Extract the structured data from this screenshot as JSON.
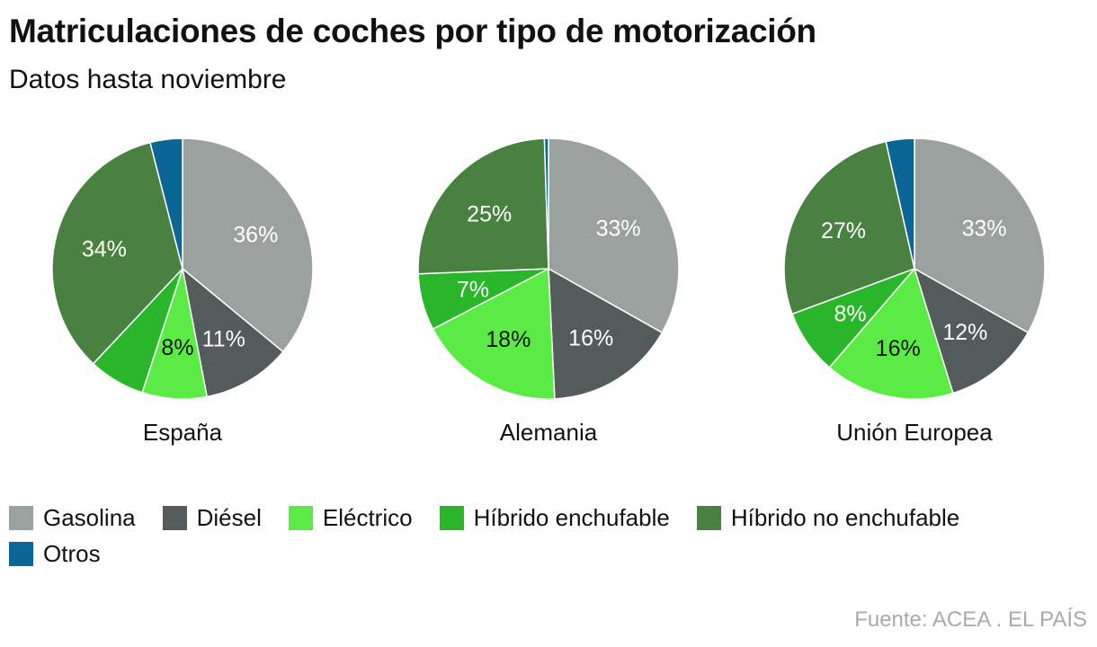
{
  "header": {
    "title": "Matriculaciones de coches por tipo de motorización",
    "subtitle": "Datos hasta noviembre"
  },
  "source": "Fuente: ACEA . EL PAÍS",
  "colors": {
    "Gasolina": "#9ba19f",
    "Diésel": "#545c5b",
    "Eléctrico": "#5aec44",
    "Híbrido enchufable": "#2ab62a",
    "Híbrido no enchufable": "#488140",
    "Otros": "#0a6697"
  },
  "chart_data": {
    "type": "pie",
    "title": "Matriculaciones de coches por tipo de motorización",
    "subtitle": "Datos hasta noviembre",
    "categories": [
      "Gasolina",
      "Diésel",
      "Eléctrico",
      "Híbrido enchufable",
      "Híbrido no enchufable",
      "Otros"
    ],
    "legend_position": "bottom",
    "pies": [
      {
        "name": "España",
        "values": [
          36,
          11,
          8,
          7,
          34,
          4
        ],
        "labels": [
          "36%",
          "11%",
          "8%",
          "",
          "34%",
          ""
        ]
      },
      {
        "name": "Alemania",
        "values": [
          33,
          16,
          18,
          7,
          25,
          0.5
        ],
        "labels": [
          "33%",
          "16%",
          "18%",
          "7%",
          "25%",
          ""
        ]
      },
      {
        "name": "Unión Europea",
        "values": [
          33,
          12,
          16,
          8,
          27,
          3.5
        ],
        "labels": [
          "33%",
          "12%",
          "16%",
          "8%",
          "27%",
          ""
        ]
      }
    ]
  }
}
